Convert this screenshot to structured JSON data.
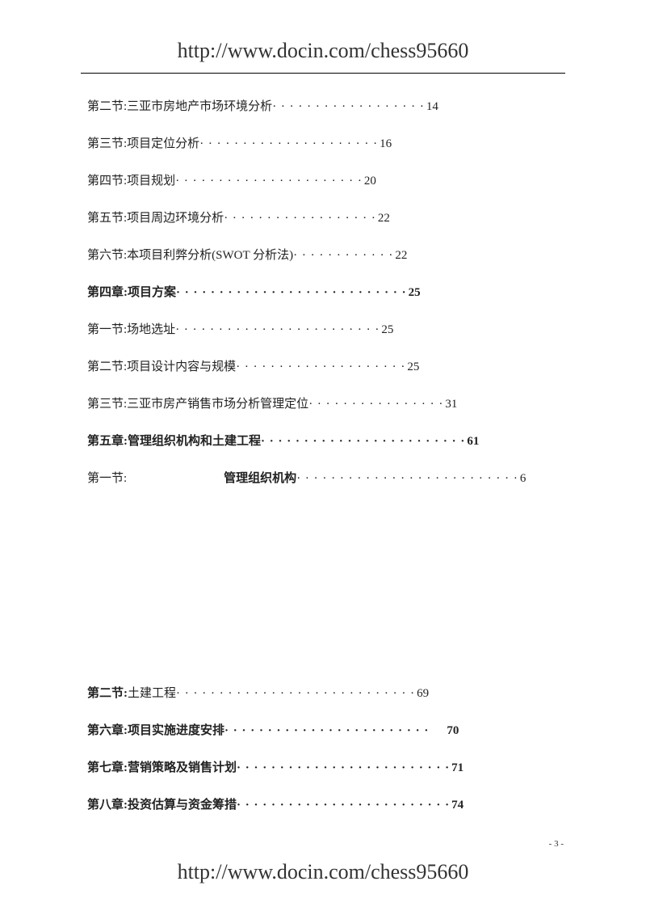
{
  "header_url": "http://www.docin.com/chess95660",
  "footer_url": "http://www.docin.com/chess95660",
  "page_number": "- 3 -",
  "toc_entries": [
    {
      "label": "第二节:",
      "title": "三亚市房地产市场环境分析",
      "page": "14",
      "bold": false,
      "dots": 18,
      "gap": 0
    },
    {
      "label": "第三节:",
      "title": "项目定位分析",
      "page": "16",
      "bold": false,
      "dots": 21,
      "gap": 0
    },
    {
      "label": "第四节:",
      "title": "项目规划",
      "page": "20",
      "bold": false,
      "dots": 22,
      "gap": 0
    },
    {
      "label": "第五节:",
      "title": "项目周边环境分析",
      "page": "22",
      "bold": false,
      "dots": 18,
      "gap": 0
    },
    {
      "label": "第六节:",
      "title": "本项目利弊分析(SWOT 分析法)",
      "page": "22",
      "bold": false,
      "dots": 12,
      "gap": 0
    },
    {
      "label": "第四章:",
      "title": "项目方案",
      "page": "25",
      "bold": true,
      "dots": 27,
      "gap": 0
    },
    {
      "label": "第一节:",
      "title": "场地选址",
      "page": "25",
      "bold": false,
      "dots": 24,
      "gap": 0
    },
    {
      "label": "第二节:",
      "title": "项目设计内容与规模",
      "page": "25",
      "bold": false,
      "dots": 20,
      "gap": 0
    },
    {
      "label": "第三节:",
      "title": "三亚市房产销售市场分析管理定位",
      "page": "31",
      "bold": false,
      "dots": 16,
      "gap": 0
    },
    {
      "label": "第五章:",
      "title": "管理组织机构和土建工程",
      "page": "61",
      "bold": true,
      "dots": 24,
      "gap": 0
    },
    {
      "label": "第一节:",
      "title": "管理组织机构",
      "page": "6",
      "bold": false,
      "dots": 26,
      "gap": 120,
      "boldtitle": true
    }
  ],
  "toc_entries2": [
    {
      "label": "第二节: ",
      "title": "土建工程",
      "page": "69",
      "bold": false,
      "dots": 28,
      "gap": 0,
      "boldlabel": true
    },
    {
      "label": "第六章:",
      "title": "项目实施进度安排",
      "page": "70",
      "bold": true,
      "dots": 24,
      "gap": 0,
      "pagegap": 20
    },
    {
      "label": "第七章:",
      "title": "营销策略及销售计划",
      "page": "71",
      "bold": true,
      "dots": 25,
      "gap": 0
    },
    {
      "label": "第八章:",
      "title": "投资估算与资金筹措",
      "page": "74",
      "bold": true,
      "dots": 25,
      "gap": 0
    }
  ]
}
